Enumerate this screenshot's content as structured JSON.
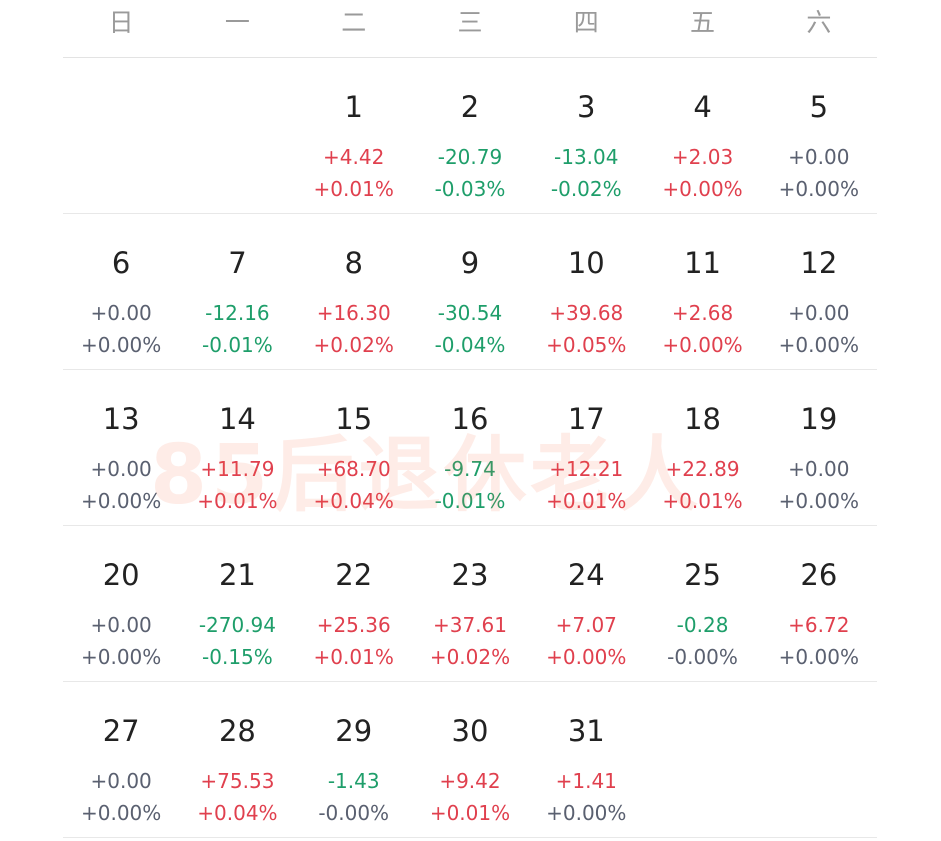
{
  "weekdays": [
    "日",
    "一",
    "二",
    "三",
    "四",
    "五",
    "六"
  ],
  "watermark": "85后退休老人",
  "weeks": [
    [
      null,
      null,
      {
        "day": "1",
        "change": "+4.42",
        "pct": "+0.01%",
        "dir": "up"
      },
      {
        "day": "2",
        "change": "-20.79",
        "pct": "-0.03%",
        "dir": "down"
      },
      {
        "day": "3",
        "change": "-13.04",
        "pct": "-0.02%",
        "dir": "down"
      },
      {
        "day": "4",
        "change": "+2.03",
        "pct": "+0.00%",
        "dir": "up"
      },
      {
        "day": "5",
        "change": "+0.00",
        "pct": "+0.00%",
        "dir": "flat"
      }
    ],
    [
      {
        "day": "6",
        "change": "+0.00",
        "pct": "+0.00%",
        "dir": "flat"
      },
      {
        "day": "7",
        "change": "-12.16",
        "pct": "-0.01%",
        "dir": "down"
      },
      {
        "day": "8",
        "change": "+16.30",
        "pct": "+0.02%",
        "dir": "up"
      },
      {
        "day": "9",
        "change": "-30.54",
        "pct": "-0.04%",
        "dir": "down"
      },
      {
        "day": "10",
        "change": "+39.68",
        "pct": "+0.05%",
        "dir": "up"
      },
      {
        "day": "11",
        "change": "+2.68",
        "pct": "+0.00%",
        "dir": "up"
      },
      {
        "day": "12",
        "change": "+0.00",
        "pct": "+0.00%",
        "dir": "flat"
      }
    ],
    [
      {
        "day": "13",
        "change": "+0.00",
        "pct": "+0.00%",
        "dir": "flat"
      },
      {
        "day": "14",
        "change": "+11.79",
        "pct": "+0.01%",
        "dir": "up"
      },
      {
        "day": "15",
        "change": "+68.70",
        "pct": "+0.04%",
        "dir": "up"
      },
      {
        "day": "16",
        "change": "-9.74",
        "pct": "-0.01%",
        "dir": "down"
      },
      {
        "day": "17",
        "change": "+12.21",
        "pct": "+0.01%",
        "dir": "up"
      },
      {
        "day": "18",
        "change": "+22.89",
        "pct": "+0.01%",
        "dir": "up"
      },
      {
        "day": "19",
        "change": "+0.00",
        "pct": "+0.00%",
        "dir": "flat"
      }
    ],
    [
      {
        "day": "20",
        "change": "+0.00",
        "pct": "+0.00%",
        "dir": "flat"
      },
      {
        "day": "21",
        "change": "-270.94",
        "pct": "-0.15%",
        "dir": "down"
      },
      {
        "day": "22",
        "change": "+25.36",
        "pct": "+0.01%",
        "dir": "up"
      },
      {
        "day": "23",
        "change": "+37.61",
        "pct": "+0.02%",
        "dir": "up"
      },
      {
        "day": "24",
        "change": "+7.07",
        "pct": "+0.00%",
        "dir": "up"
      },
      {
        "day": "25",
        "change": "-0.28",
        "pct": "-0.00%",
        "dir": "down",
        "pct_dir": "flat"
      },
      {
        "day": "26",
        "change": "+6.72",
        "pct": "+0.00%",
        "dir": "up",
        "pct_dir": "flat"
      }
    ],
    [
      {
        "day": "27",
        "change": "+0.00",
        "pct": "+0.00%",
        "dir": "flat"
      },
      {
        "day": "28",
        "change": "+75.53",
        "pct": "+0.04%",
        "dir": "up"
      },
      {
        "day": "29",
        "change": "-1.43",
        "pct": "-0.00%",
        "dir": "down",
        "pct_dir": "flat"
      },
      {
        "day": "30",
        "change": "+9.42",
        "pct": "+0.01%",
        "dir": "up"
      },
      {
        "day": "31",
        "change": "+1.41",
        "pct": "+0.00%",
        "dir": "up",
        "pct_dir": "flat"
      },
      null,
      null
    ]
  ],
  "colors": {
    "up": "#e0404e",
    "down": "#1e9e6a",
    "flat": "#5a6070"
  }
}
